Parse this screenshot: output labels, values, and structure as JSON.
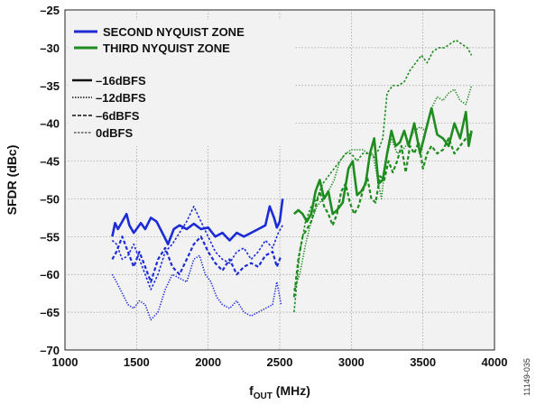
{
  "figure_id": "11149-035",
  "chart_data": {
    "type": "line",
    "title": "",
    "xlabel": {
      "main": "f",
      "sub": "OUT",
      "unit": " (MHz)"
    },
    "ylabel": "SFDR (dBc)",
    "xlim": [
      1000,
      4000
    ],
    "ylim": [
      -70,
      -25
    ],
    "xticks": [
      1000,
      1500,
      2000,
      2500,
      3000,
      3500,
      4000
    ],
    "yticks": [
      -25,
      -30,
      -35,
      -40,
      -45,
      -50,
      -55,
      -60,
      -65,
      -70
    ],
    "xtick_labels": [
      "1000",
      "1500",
      "2000",
      "2500",
      "3000",
      "3500",
      "4000"
    ],
    "ytick_labels": [
      "–25",
      "–30",
      "–35",
      "–40",
      "–45",
      "–50",
      "–55",
      "–60",
      "–65",
      "–70"
    ],
    "grid": true,
    "legend": {
      "position": "top-left",
      "zones": [
        {
          "label": "SECOND NYQUIST ZONE",
          "color": "#1c2bd6"
        },
        {
          "label": "THIRD NYQUIST ZONE",
          "color": "#1e8c1e"
        }
      ],
      "levels": [
        {
          "label": "–16dBFS",
          "style": "solid"
        },
        {
          "label": "–12dBFS",
          "style": "dotted"
        },
        {
          "label": "–6dBFS",
          "style": "dashed"
        },
        {
          "label": "0dBFS",
          "style": "short-dash"
        }
      ]
    },
    "series": [
      {
        "zone": "second",
        "level": "–16dBFS",
        "style": "solid",
        "color": "#1c2bd6",
        "x": [
          1330,
          1350,
          1370,
          1400,
          1430,
          1450,
          1480,
          1500,
          1530,
          1560,
          1600,
          1640,
          1680,
          1720,
          1760,
          1800,
          1850,
          1900,
          1950,
          2000,
          2050,
          2100,
          2150,
          2200,
          2250,
          2300,
          2350,
          2400,
          2430,
          2460,
          2480,
          2500,
          2520
        ],
        "y": [
          -55,
          -53.2,
          -54,
          -53,
          -52,
          -53.5,
          -54.5,
          -54,
          -53.2,
          -54,
          -52.5,
          -53,
          -54.5,
          -56,
          -54,
          -53.5,
          -54,
          -53.3,
          -54,
          -53.8,
          -55,
          -54.5,
          -55.5,
          -54.5,
          -55,
          -54.5,
          -54,
          -53.5,
          -51,
          -52.5,
          -53.8,
          -53,
          -50
        ]
      },
      {
        "zone": "second",
        "level": "–12dBFS",
        "style": "dotted",
        "color": "#1c2bd6",
        "x": [
          1330,
          1360,
          1400,
          1440,
          1480,
          1520,
          1560,
          1600,
          1650,
          1700,
          1750,
          1800,
          1850,
          1900,
          1940,
          1980,
          2020,
          2060,
          2100,
          2150,
          2200,
          2250,
          2300,
          2350,
          2400,
          2450,
          2480,
          2510
        ],
        "y": [
          -60,
          -61,
          -62.5,
          -64,
          -64.5,
          -63.5,
          -64,
          -66,
          -65,
          -62,
          -60,
          -60.5,
          -61,
          -58,
          -57.5,
          -60,
          -61,
          -63,
          -64,
          -64.5,
          -63.5,
          -65,
          -65.5,
          -65,
          -64.5,
          -64,
          -61,
          -64
        ]
      },
      {
        "zone": "second",
        "level": "–6dBFS",
        "style": "dashed",
        "color": "#1c2bd6",
        "x": [
          1330,
          1360,
          1400,
          1440,
          1480,
          1520,
          1560,
          1600,
          1650,
          1700,
          1750,
          1800,
          1850,
          1900,
          1950,
          2000,
          2050,
          2100,
          2150,
          2200,
          2250,
          2300,
          2350,
          2400,
          2450,
          2480,
          2510
        ],
        "y": [
          -58,
          -57,
          -55,
          -57,
          -59,
          -57,
          -59,
          -61,
          -58,
          -56.5,
          -59,
          -60,
          -58,
          -56,
          -55,
          -57,
          -58.5,
          -59.5,
          -58,
          -60,
          -59,
          -58.5,
          -59,
          -57.5,
          -57,
          -59,
          -57.5
        ]
      },
      {
        "zone": "second",
        "level": "0dBFS",
        "style": "short-dash",
        "color": "#1c2bd6",
        "x": [
          1330,
          1360,
          1400,
          1440,
          1480,
          1520,
          1560,
          1600,
          1650,
          1700,
          1750,
          1800,
          1850,
          1900,
          1950,
          2000,
          2050,
          2100,
          2150,
          2200,
          2250,
          2300,
          2350,
          2400,
          2450,
          2490,
          2520
        ],
        "y": [
          -55.5,
          -56,
          -58,
          -57.5,
          -56,
          -58,
          -60,
          -62,
          -60,
          -57,
          -56,
          -54.5,
          -53,
          -51,
          -53,
          -55,
          -57,
          -58,
          -58.5,
          -57,
          -56.5,
          -58,
          -57,
          -55.5,
          -56.5,
          -54.5,
          -53.5
        ]
      },
      {
        "zone": "third",
        "level": "–16dBFS",
        "style": "solid",
        "color": "#1e8c1e",
        "x": [
          2600,
          2630,
          2660,
          2690,
          2720,
          2750,
          2780,
          2810,
          2840,
          2870,
          2900,
          2940,
          2980,
          3010,
          3040,
          3070,
          3100,
          3130,
          3160,
          3190,
          3220,
          3250,
          3280,
          3310,
          3340,
          3370,
          3400,
          3440,
          3480,
          3520,
          3560,
          3600,
          3640,
          3680,
          3720,
          3760,
          3800,
          3820,
          3840
        ],
        "y": [
          -52,
          -51.5,
          -52,
          -53,
          -52,
          -49,
          -47.5,
          -50,
          -49,
          -52,
          -51.5,
          -50.5,
          -46,
          -45,
          -49.5,
          -49,
          -48,
          -44,
          -42,
          -48,
          -47.5,
          -44,
          -41,
          -43,
          -42.5,
          -41,
          -43,
          -40,
          -44,
          -41,
          -38,
          -41.5,
          -42,
          -43,
          -40,
          -42,
          -38.5,
          -43,
          -41
        ]
      },
      {
        "zone": "third",
        "level": "–12dBFS",
        "style": "dotted",
        "color": "#1e8c1e",
        "x": [
          2600,
          2640,
          2680,
          2720,
          2760,
          2800,
          2840,
          2880,
          2920,
          2960,
          3000,
          3040,
          3080,
          3120,
          3150,
          3180,
          3210,
          3240,
          3280,
          3320,
          3360,
          3400,
          3440,
          3480,
          3520,
          3560,
          3600,
          3640,
          3680,
          3720,
          3760,
          3800,
          3840
        ],
        "y": [
          -62,
          -60,
          -56,
          -53,
          -51,
          -50,
          -49,
          -47.5,
          -45,
          -44,
          -43.5,
          -43.5,
          -43.5,
          -44,
          -44,
          -47,
          -50,
          -45,
          -42,
          -44,
          -43.5,
          -42.5,
          -41,
          -40.5,
          -41,
          -38,
          -36.5,
          -37,
          -36,
          -35.5,
          -37,
          -37.5,
          -35
        ]
      },
      {
        "zone": "third",
        "level": "–6dBFS",
        "style": "dashed",
        "color": "#1e8c1e",
        "x": [
          2600,
          2630,
          2660,
          2690,
          2720,
          2750,
          2780,
          2810,
          2840,
          2870,
          2900,
          2930,
          2960,
          2990,
          3020,
          3050,
          3080,
          3110,
          3140,
          3170,
          3200,
          3230,
          3260,
          3290,
          3320,
          3350,
          3380,
          3410,
          3440,
          3470,
          3500,
          3530,
          3560,
          3600,
          3640,
          3680,
          3720,
          3760,
          3800,
          3840
        ],
        "y": [
          -63,
          -58,
          -55,
          -54,
          -53,
          -51,
          -49,
          -51,
          -52,
          -53.5,
          -52,
          -49,
          -48,
          -50.5,
          -52,
          -51,
          -49,
          -47,
          -50,
          -50.5,
          -47,
          -47.5,
          -45,
          -46.5,
          -45,
          -43,
          -46.5,
          -43,
          -44,
          -42.5,
          -46,
          -44,
          -43,
          -44,
          -43.5,
          -42,
          -44,
          -43,
          -42,
          -41
        ]
      },
      {
        "zone": "third",
        "level": "0dBFS",
        "style": "short-dash",
        "color": "#1e8c1e",
        "x": [
          2600,
          2640,
          2680,
          2720,
          2760,
          2800,
          2840,
          2880,
          2920,
          2960,
          3000,
          3040,
          3080,
          3120,
          3160,
          3190,
          3220,
          3250,
          3290,
          3330,
          3370,
          3410,
          3450,
          3490,
          3530,
          3570,
          3610,
          3650,
          3690,
          3730,
          3770,
          3810,
          3840
        ],
        "y": [
          -65,
          -57,
          -53,
          -51,
          -50,
          -48,
          -47,
          -46,
          -45,
          -44,
          -44,
          -45,
          -44,
          -44,
          -44.5,
          -43.5,
          -42,
          -36,
          -35,
          -35,
          -34.5,
          -33,
          -32,
          -31,
          -32,
          -30.5,
          -30,
          -30,
          -29.5,
          -29,
          -29.5,
          -30,
          -31
        ]
      }
    ]
  }
}
